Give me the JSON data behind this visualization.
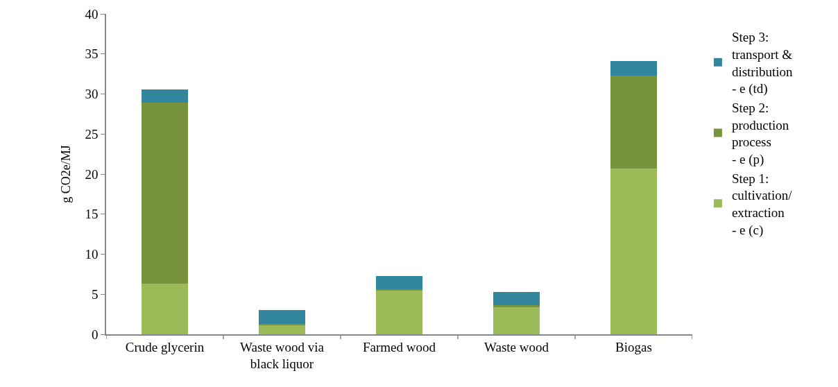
{
  "chart_data": {
    "type": "bar",
    "stacked": true,
    "ylabel": "g CO2e/MJ",
    "categories": [
      "Crude glycerin",
      "Waste wood via black liquor",
      "Farmed wood",
      "Waste wood",
      "Biogas"
    ],
    "series": [
      {
        "name": "Step 1: cultivation/ extraction - e (c)",
        "color": "#9bbb59",
        "values": [
          6.3,
          1.1,
          5.5,
          3.4,
          20.7
        ]
      },
      {
        "name": "Step 2: production process - e (p)",
        "color": "#77933c",
        "values": [
          22.6,
          0.2,
          0.1,
          0.2,
          11.6
        ]
      },
      {
        "name": "Step 3: transport & distribution - e (td)",
        "color": "#31859c",
        "values": [
          1.7,
          1.7,
          1.7,
          1.7,
          1.8
        ]
      }
    ],
    "ylim": [
      0,
      40
    ],
    "yticks": [
      0,
      5,
      10,
      15,
      20,
      25,
      30,
      35,
      40
    ],
    "grid": false,
    "legend": "right"
  }
}
